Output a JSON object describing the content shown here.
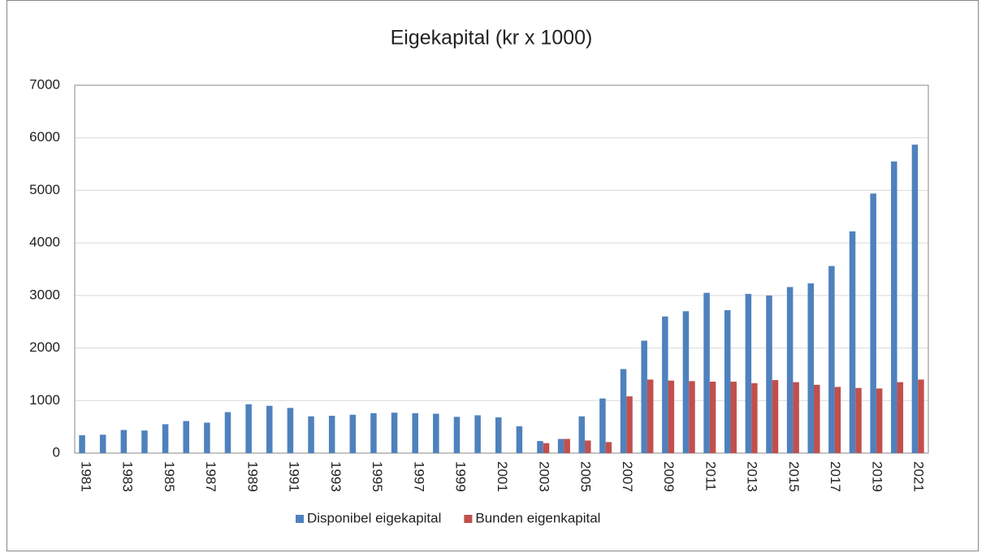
{
  "chart_data": {
    "type": "bar",
    "title": "Eigekapital (kr x 1000)",
    "categories": [
      "1981",
      null,
      "1983",
      null,
      "1985",
      null,
      "1987",
      null,
      "1989",
      null,
      "1991",
      null,
      "1993",
      null,
      "1995",
      null,
      "1997",
      null,
      "1999",
      null,
      "2001",
      null,
      "2003",
      null,
      "2005",
      null,
      "2007",
      null,
      "2009",
      null,
      "2011",
      null,
      "2013",
      null,
      "2015",
      null,
      "2017",
      null,
      "2019",
      null,
      "2021"
    ],
    "series": [
      {
        "name": "Disponibel eigekapital",
        "color": "#4f81bd",
        "values": [
          340,
          350,
          440,
          430,
          550,
          610,
          580,
          780,
          930,
          900,
          860,
          700,
          710,
          730,
          760,
          770,
          760,
          750,
          690,
          720,
          680,
          510,
          230,
          270,
          700,
          1040,
          1600,
          2140,
          2600,
          2700,
          3050,
          2720,
          3030,
          3000,
          3160,
          3230,
          3560,
          4220,
          4940,
          5550,
          5870
        ]
      },
      {
        "name": "Bunden eigenkapital",
        "color": "#c0504d",
        "values": [
          null,
          null,
          null,
          null,
          null,
          null,
          null,
          null,
          null,
          null,
          null,
          null,
          null,
          null,
          null,
          null,
          null,
          null,
          null,
          null,
          null,
          null,
          190,
          270,
          240,
          210,
          1080,
          1400,
          1380,
          1370,
          1360,
          1360,
          1330,
          1390,
          1350,
          1300,
          1260,
          1240,
          1230,
          1350,
          1400
        ]
      }
    ],
    "ylim": [
      0,
      7000
    ],
    "yticks": [
      0,
      1000,
      2000,
      3000,
      4000,
      5000,
      6000,
      7000
    ],
    "grid": true,
    "legend": "bottom"
  }
}
